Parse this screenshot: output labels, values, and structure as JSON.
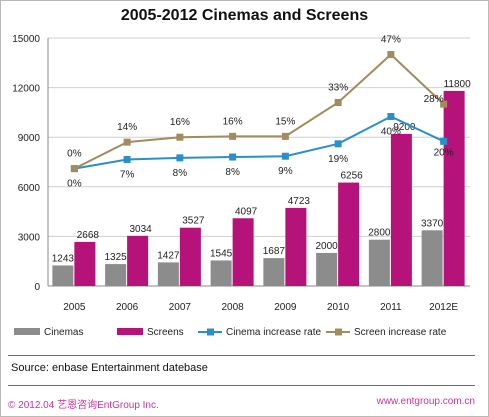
{
  "title": "2005-2012 Cinemas and Screens",
  "source": "Source:  enbase  Entertainment datebase",
  "footer": {
    "left": "© 2012.04  艺恩咨询EntGroup Inc.",
    "right": "www.entgroup.com.cn"
  },
  "colors": {
    "cinemas": "#8c8c8c",
    "screens": "#b5127a",
    "cinema_rate": "#2b8fc8",
    "screen_rate": "#a08c5c",
    "accent": "#cc3399"
  },
  "chart_data": {
    "type": "bar",
    "title": "2005-2012 Cinemas and Screens",
    "categories": [
      "2005",
      "2006",
      "2007",
      "2008",
      "2009",
      "2010",
      "2011",
      "2012E"
    ],
    "ylim": [
      0,
      15000
    ],
    "yticks": [
      0,
      3000,
      6000,
      9000,
      12000,
      15000
    ],
    "grid": true,
    "legend_position": "bottom",
    "series": [
      {
        "name": "Cinemas",
        "kind": "bar",
        "values": [
          1243,
          1325,
          1427,
          1545,
          1687,
          2000,
          2800,
          3370
        ]
      },
      {
        "name": "Screens",
        "kind": "bar",
        "values": [
          2668,
          3034,
          3527,
          4097,
          4723,
          6256,
          9200,
          11800
        ]
      },
      {
        "name": "Cinema increase rate",
        "kind": "line",
        "values": [
          7100,
          7650,
          7750,
          7800,
          7850,
          8600,
          10250,
          8750
        ],
        "labels": [
          "0%",
          "7%",
          "8%",
          "8%",
          "9%",
          "19%",
          "40%",
          "20%"
        ]
      },
      {
        "name": "Screen increase rate",
        "kind": "line",
        "values": [
          7100,
          8700,
          9000,
          9050,
          9050,
          11100,
          14000,
          11000
        ],
        "labels": [
          "0%",
          "14%",
          "16%",
          "16%",
          "15%",
          "33%",
          "47%",
          "28%"
        ]
      }
    ]
  }
}
